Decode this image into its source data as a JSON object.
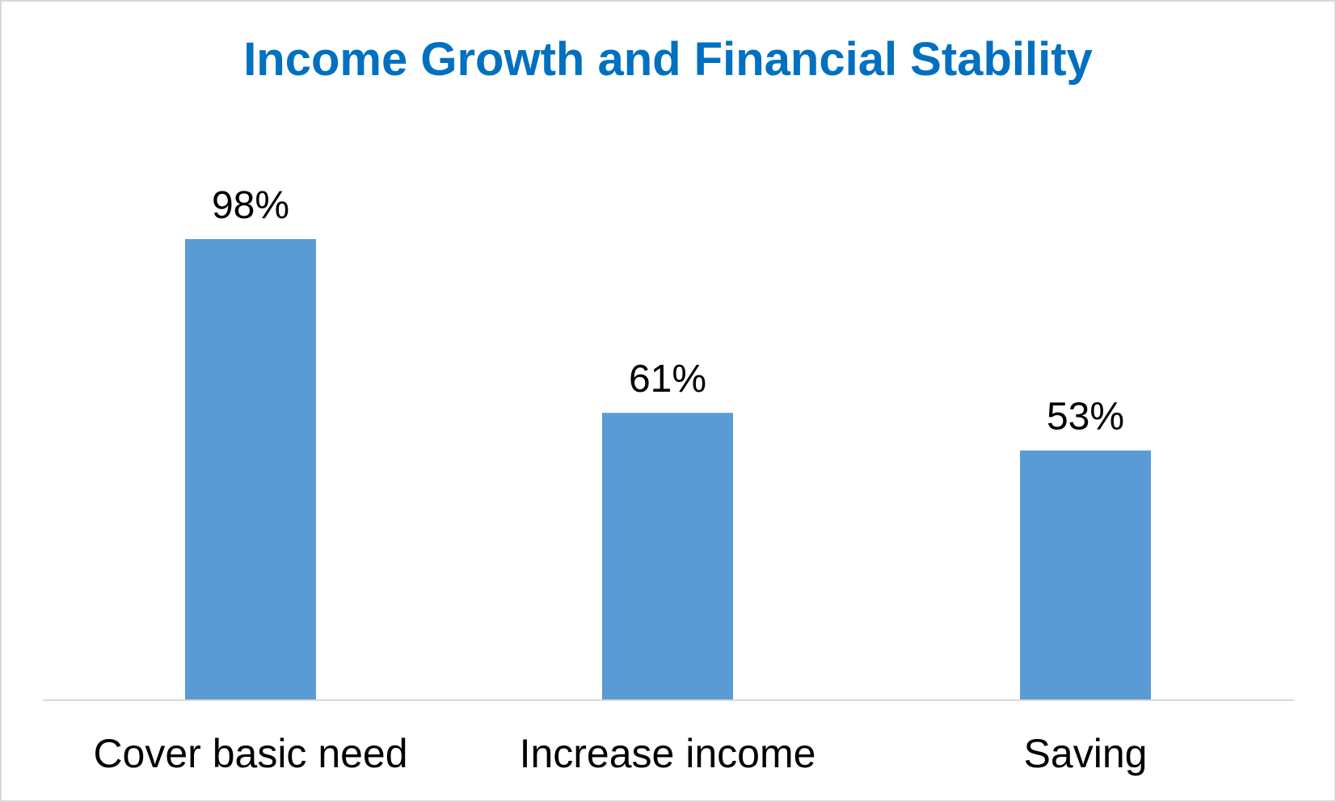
{
  "chart_data": {
    "type": "bar",
    "title": "Income Growth and Financial Stability",
    "categories": [
      "Cover basic need",
      "Increase income",
      "Saving"
    ],
    "values": [
      98,
      61,
      53
    ],
    "data_labels": [
      "98%",
      "61%",
      "53%"
    ],
    "unit": "%",
    "ylim": [
      0,
      98
    ],
    "grid": false,
    "legend": "none",
    "colors": {
      "bar": "#5B9BD5",
      "title": "#0070C0",
      "axis": "#d9d9d9"
    }
  }
}
